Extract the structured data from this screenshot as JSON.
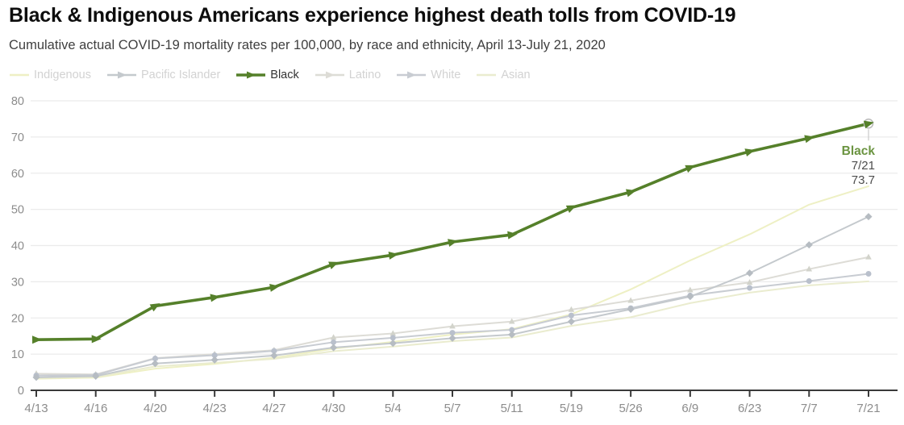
{
  "header": {
    "title": "Black & Indigenous Americans experience highest death tolls from COVID-19",
    "subtitle": "Cumulative actual COVID-19 mortality rates per 100,000, by race and ethnicity, April 13-July 21, 2020"
  },
  "colors": {
    "background": "#ffffff",
    "gridline": "#ebebeb",
    "axis_line": "#3a3a3a",
    "tick_label": "#8c8c8c",
    "faded_legend_text": "#d2d2d2",
    "highlight_legend_text": "#333333",
    "annotation_text": "#4d4d4d",
    "endpoint_circle_stroke": "#b9b9b9"
  },
  "chart_data": {
    "type": "line",
    "title": "Black & Indigenous Americans experience highest death tolls from COVID-19",
    "subtitle": "Cumulative actual COVID-19 mortality rates per 100,000, by race and ethnicity, April 13-July 21, 2020",
    "x_categories": [
      "4/13",
      "4/16",
      "4/20",
      "4/23",
      "4/27",
      "4/30",
      "5/4",
      "5/7",
      "5/11",
      "5/19",
      "5/26",
      "6/9",
      "6/23",
      "7/7",
      "7/21"
    ],
    "ylim": [
      0,
      80
    ],
    "yticks": [
      0,
      10,
      20,
      30,
      40,
      50,
      60,
      70,
      80
    ],
    "grid": "horizontal",
    "legend_position": "top-left",
    "series": [
      {
        "name": "Indigenous",
        "color": "#eef0c4",
        "marker": "none",
        "marker_color": "#eef0c4",
        "faded": true,
        "values": [
          3.2,
          3.5,
          6.0,
          7.3,
          9.0,
          11.5,
          13.4,
          15.4,
          16.9,
          21.0,
          27.9,
          35.9,
          43.1,
          51.3,
          56.4
        ]
      },
      {
        "name": "Pacific Islander",
        "color": "#c4c9cd",
        "marker": "diamond",
        "marker_color": "#b6bcc2",
        "faded": true,
        "values": [
          3.6,
          3.9,
          7.4,
          8.4,
          9.6,
          11.8,
          13.0,
          14.4,
          15.4,
          19.0,
          22.4,
          25.9,
          32.4,
          40.2,
          48.0
        ]
      },
      {
        "name": "Black",
        "color": "#55802a",
        "marker": "arrow",
        "marker_color": "#55802a",
        "faded": false,
        "values": [
          14.0,
          14.2,
          23.3,
          25.7,
          28.5,
          34.9,
          37.4,
          41.0,
          43.0,
          50.5,
          54.8,
          61.6,
          66.0,
          69.7,
          73.7
        ]
      },
      {
        "name": "Latino",
        "color": "#dddcd6",
        "marker": "triangle",
        "marker_color": "#d2d3cb",
        "faded": true,
        "values": [
          4.6,
          4.4,
          8.9,
          10.0,
          11.1,
          14.6,
          15.7,
          17.7,
          19.0,
          22.3,
          24.8,
          27.7,
          29.8,
          33.5,
          36.8
        ]
      },
      {
        "name": "White",
        "color": "#c8ccd2",
        "marker": "circle",
        "marker_color": "#b9c0cc",
        "faded": true,
        "values": [
          4.1,
          4.2,
          8.8,
          9.7,
          10.9,
          13.3,
          14.5,
          15.9,
          16.7,
          20.7,
          22.7,
          26.2,
          28.3,
          30.2,
          32.2
        ]
      },
      {
        "name": "Asian",
        "color": "#eaeccf",
        "marker": "none",
        "marker_color": "#eaeccf",
        "faded": true,
        "values": [
          3.4,
          3.7,
          6.6,
          7.6,
          8.7,
          10.8,
          12.1,
          13.6,
          14.6,
          17.8,
          20.2,
          24.1,
          27.0,
          29.0,
          30.1
        ]
      }
    ],
    "annotation": {
      "series_label": "Black",
      "date_label": "7/21",
      "value_label": "73.7",
      "label_color": "#6b9441"
    }
  }
}
